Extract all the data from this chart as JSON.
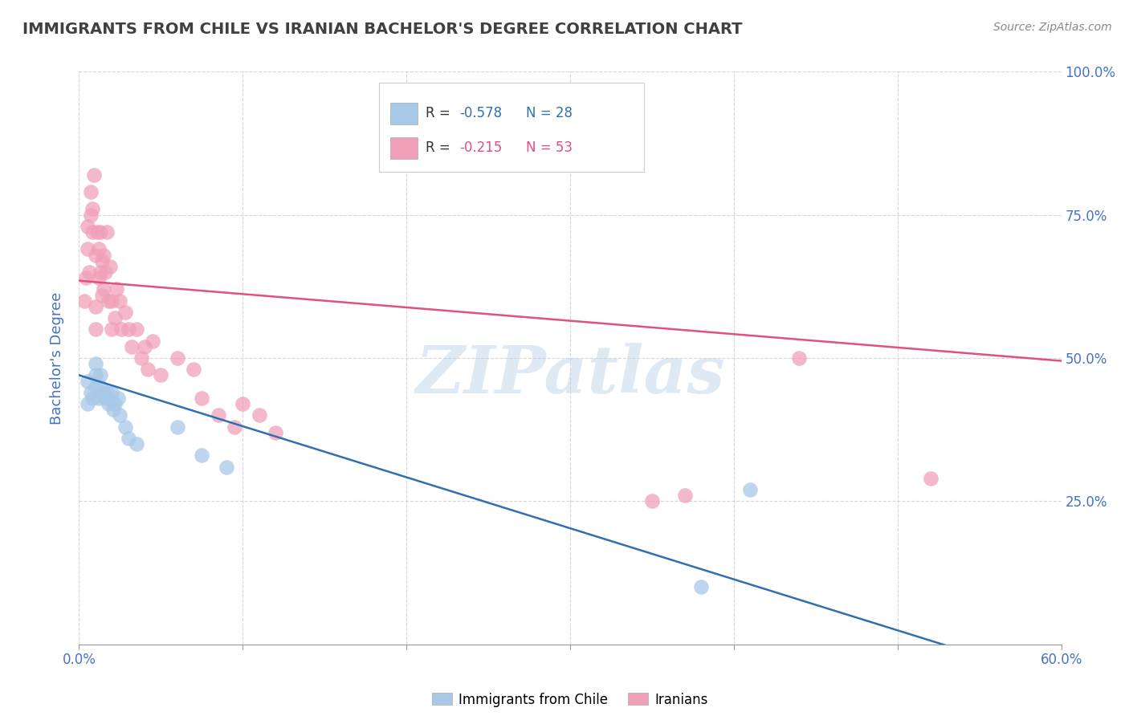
{
  "title": "IMMIGRANTS FROM CHILE VS IRANIAN BACHELOR'S DEGREE CORRELATION CHART",
  "source": "Source: ZipAtlas.com",
  "ylabel": "Bachelor's Degree",
  "legend1_r": "R = -0.578",
  "legend1_n": "N = 28",
  "legend2_r": "R = -0.215",
  "legend2_n": "N = 53",
  "legend_label1": "Immigrants from Chile",
  "legend_label2": "Iranians",
  "xlim": [
    0.0,
    0.6
  ],
  "ylim": [
    0.0,
    1.0
  ],
  "xticks": [
    0.0,
    0.1,
    0.2,
    0.3,
    0.4,
    0.5,
    0.6
  ],
  "yticks": [
    0.0,
    0.25,
    0.5,
    0.75,
    1.0
  ],
  "ytick_labels": [
    "",
    "25.0%",
    "50.0%",
    "75.0%",
    "100.0%"
  ],
  "blue_color": "#a8c8e8",
  "blue_line_color": "#3070b0",
  "pink_color": "#f0a0b8",
  "pink_line_color": "#e05080",
  "blue_scatter_x": [
    0.005,
    0.005,
    0.007,
    0.008,
    0.01,
    0.01,
    0.01,
    0.012,
    0.013,
    0.013,
    0.015,
    0.016,
    0.017,
    0.018,
    0.018,
    0.02,
    0.021,
    0.022,
    0.024,
    0.025,
    0.028,
    0.03,
    0.035,
    0.06,
    0.075,
    0.09,
    0.38,
    0.41
  ],
  "blue_scatter_y": [
    0.46,
    0.42,
    0.44,
    0.43,
    0.49,
    0.47,
    0.45,
    0.43,
    0.47,
    0.45,
    0.44,
    0.43,
    0.44,
    0.43,
    0.42,
    0.44,
    0.41,
    0.42,
    0.43,
    0.4,
    0.38,
    0.36,
    0.35,
    0.38,
    0.33,
    0.31,
    0.1,
    0.27
  ],
  "pink_scatter_x": [
    0.003,
    0.004,
    0.005,
    0.005,
    0.006,
    0.007,
    0.007,
    0.008,
    0.008,
    0.009,
    0.01,
    0.01,
    0.01,
    0.011,
    0.012,
    0.012,
    0.013,
    0.013,
    0.014,
    0.014,
    0.015,
    0.015,
    0.016,
    0.017,
    0.018,
    0.019,
    0.02,
    0.02,
    0.022,
    0.023,
    0.025,
    0.026,
    0.028,
    0.03,
    0.032,
    0.035,
    0.038,
    0.04,
    0.042,
    0.045,
    0.05,
    0.06,
    0.07,
    0.075,
    0.085,
    0.095,
    0.1,
    0.11,
    0.12,
    0.35,
    0.37,
    0.44,
    0.52
  ],
  "pink_scatter_y": [
    0.6,
    0.64,
    0.69,
    0.73,
    0.65,
    0.75,
    0.79,
    0.72,
    0.76,
    0.82,
    0.55,
    0.59,
    0.68,
    0.72,
    0.64,
    0.69,
    0.65,
    0.72,
    0.61,
    0.67,
    0.62,
    0.68,
    0.65,
    0.72,
    0.6,
    0.66,
    0.6,
    0.55,
    0.57,
    0.62,
    0.6,
    0.55,
    0.58,
    0.55,
    0.52,
    0.55,
    0.5,
    0.52,
    0.48,
    0.53,
    0.47,
    0.5,
    0.48,
    0.43,
    0.4,
    0.38,
    0.42,
    0.4,
    0.37,
    0.25,
    0.26,
    0.5,
    0.29
  ],
  "blue_line_x": [
    0.0,
    0.55
  ],
  "blue_line_y": [
    0.47,
    -0.02
  ],
  "pink_line_x": [
    0.0,
    0.6
  ],
  "pink_line_y": [
    0.635,
    0.495
  ],
  "watermark": "ZIPatlas",
  "background_color": "#ffffff",
  "grid_color": "#cccccc",
  "title_color": "#404040",
  "axis_label_color": "#4472c4",
  "tick_color": "#4472c4"
}
